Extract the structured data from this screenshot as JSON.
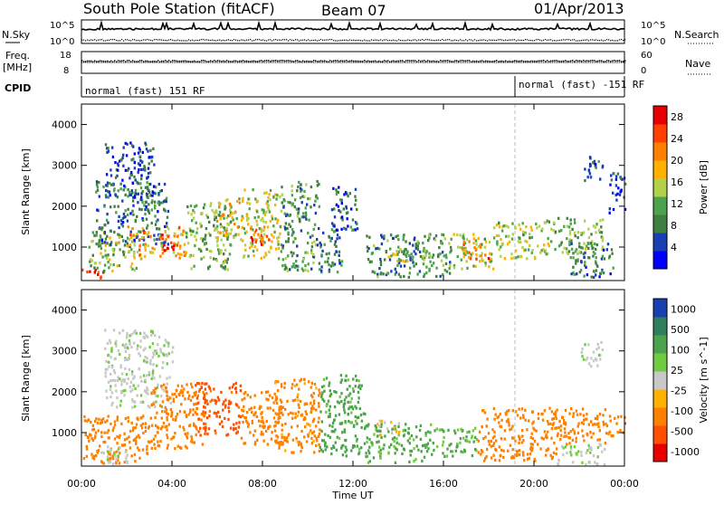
{
  "header": {
    "station": "South Pole Station (fitACF)",
    "beam": "Beam 07",
    "date": "01/Apr/2013"
  },
  "top_panels": {
    "nsky_label": "N.Sky",
    "nsky_ticks": [
      "10^5",
      "10^0"
    ],
    "nsearch_label": "N.Search",
    "nsearch_ticks": [
      "10^5",
      "10^0"
    ],
    "freq_label": "Freq.",
    "freq_unit": "[MHz]",
    "freq_ticks": [
      "18",
      "8"
    ],
    "nave_label": "Nave",
    "nave_ticks": [
      "60",
      "0"
    ],
    "cpid_label": "CPID",
    "cpid_segments": [
      {
        "text": "normal (fast) 151 RF",
        "start": "00:00"
      },
      {
        "text": "normal (fast) -151 RF",
        "start": "19:00"
      }
    ]
  },
  "x_axis": {
    "label": "Time UT",
    "ticks": [
      "00:00",
      "04:00",
      "08:00",
      "12:00",
      "16:00",
      "20:00",
      "00:00"
    ]
  },
  "y_axis": {
    "label": "Slant Range [km]",
    "ticks": [
      "1000",
      "2000",
      "3000",
      "4000"
    ]
  },
  "colors": {
    "power": [
      "#0000ff",
      "#1a3fb3",
      "#3f7f3f",
      "#4da34d",
      "#b3d24a",
      "#ffb000",
      "#ff8000",
      "#ff4000",
      "#e80000"
    ],
    "velocity": [
      "#1a3fb3",
      "#2f7f5f",
      "#4da34d",
      "#6fcc3f",
      "#c8c8c8",
      "#ffb000",
      "#ff8000",
      "#ff5000",
      "#e80000"
    ]
  },
  "chart_data": [
    {
      "type": "heatmap",
      "name": "power",
      "x_range_hours": [
        0,
        24
      ],
      "y_range_km": [
        180,
        4500
      ],
      "colorbar": {
        "label": "Power [dB]",
        "ticks": [
          "4",
          "8",
          "12",
          "16",
          "20",
          "24",
          "28"
        ],
        "range": [
          0,
          30
        ]
      },
      "echo_regions": [
        {
          "t0": 0.0,
          "t1": 1.0,
          "r0": 200,
          "r1": 450,
          "value": 26
        },
        {
          "t0": 0.3,
          "t1": 2.4,
          "r0": 400,
          "r1": 1350,
          "value": 13
        },
        {
          "t0": 0.6,
          "t1": 3.8,
          "r0": 1000,
          "r1": 2600,
          "value": 8
        },
        {
          "t0": 1.0,
          "t1": 3.2,
          "r0": 2200,
          "r1": 3550,
          "value": 5
        },
        {
          "t0": 2.0,
          "t1": 4.6,
          "r0": 700,
          "r1": 1500,
          "value": 19
        },
        {
          "t0": 3.4,
          "t1": 4.2,
          "r0": 900,
          "r1": 1300,
          "value": 27
        },
        {
          "t0": 4.6,
          "t1": 6.6,
          "r0": 400,
          "r1": 2100,
          "value": 12
        },
        {
          "t0": 5.8,
          "t1": 7.0,
          "r0": 1200,
          "r1": 2200,
          "value": 17
        },
        {
          "t0": 7.0,
          "t1": 8.8,
          "r0": 700,
          "r1": 2400,
          "value": 15
        },
        {
          "t0": 7.4,
          "t1": 8.4,
          "r0": 900,
          "r1": 1500,
          "value": 24
        },
        {
          "t0": 8.8,
          "t1": 10.5,
          "r0": 400,
          "r1": 2600,
          "value": 10
        },
        {
          "t0": 10.5,
          "t1": 11.5,
          "r0": 300,
          "r1": 1500,
          "value": 8
        },
        {
          "t0": 11.0,
          "t1": 12.2,
          "r0": 1400,
          "r1": 2500,
          "value": 6
        },
        {
          "t0": 12.5,
          "t1": 16.3,
          "r0": 250,
          "r1": 1300,
          "value": 9
        },
        {
          "t0": 13.5,
          "t1": 15.5,
          "r0": 600,
          "r1": 900,
          "value": 15
        },
        {
          "t0": 16.2,
          "t1": 18.2,
          "r0": 450,
          "r1": 1300,
          "value": 14
        },
        {
          "t0": 16.8,
          "t1": 18.0,
          "r0": 700,
          "r1": 1150,
          "value": 22
        },
        {
          "t0": 18.2,
          "t1": 20.5,
          "r0": 700,
          "r1": 1600,
          "value": 14
        },
        {
          "t0": 20.5,
          "t1": 23.0,
          "r0": 800,
          "r1": 1700,
          "value": 12
        },
        {
          "t0": 21.5,
          "t1": 23.5,
          "r0": 250,
          "r1": 1100,
          "value": 8
        },
        {
          "t0": 22.2,
          "t1": 23.0,
          "r0": 2600,
          "r1": 3300,
          "value": 6
        },
        {
          "t0": 23.3,
          "t1": 24.0,
          "r0": 1800,
          "r1": 2800,
          "value": 4
        }
      ]
    },
    {
      "type": "heatmap",
      "name": "velocity",
      "x_range_hours": [
        0,
        24
      ],
      "y_range_km": [
        180,
        4500
      ],
      "colorbar": {
        "label": "Velocity [m s^-1]",
        "ticks": [
          "1000",
          "500",
          "100",
          "25",
          "-25",
          "-100",
          "-500",
          "-1000"
        ],
        "range": [
          -1200,
          1200
        ]
      },
      "echo_regions": [
        {
          "t0": 0.0,
          "t1": 3.0,
          "r0": 200,
          "r1": 1400,
          "value": -200
        },
        {
          "t0": 0.8,
          "t1": 2.0,
          "r0": 200,
          "r1": 700,
          "value": 10
        },
        {
          "t0": 1.0,
          "t1": 4.0,
          "r0": 1600,
          "r1": 3500,
          "value": 10
        },
        {
          "t0": 3.0,
          "t1": 5.5,
          "r0": 600,
          "r1": 2200,
          "value": -350
        },
        {
          "t0": 5.0,
          "t1": 7.0,
          "r0": 900,
          "r1": 2200,
          "value": -700
        },
        {
          "t0": 7.0,
          "t1": 9.0,
          "r0": 700,
          "r1": 2000,
          "value": -300
        },
        {
          "t0": 8.5,
          "t1": 10.5,
          "r0": 500,
          "r1": 2300,
          "value": -150
        },
        {
          "t0": 10.5,
          "t1": 12.5,
          "r0": 400,
          "r1": 2400,
          "value": 150
        },
        {
          "t0": 12.5,
          "t1": 15.5,
          "r0": 250,
          "r1": 1200,
          "value": 130
        },
        {
          "t0": 13.0,
          "t1": 14.0,
          "r0": 900,
          "r1": 1300,
          "value": -30
        },
        {
          "t0": 15.5,
          "t1": 17.5,
          "r0": 400,
          "r1": 1100,
          "value": 120
        },
        {
          "t0": 17.5,
          "t1": 21.0,
          "r0": 300,
          "r1": 1600,
          "value": -250
        },
        {
          "t0": 21.0,
          "t1": 23.2,
          "r0": 700,
          "r1": 1600,
          "value": -300
        },
        {
          "t0": 21.0,
          "t1": 23.2,
          "r0": 200,
          "r1": 700,
          "value": 15
        },
        {
          "t0": 22.0,
          "t1": 23.0,
          "r0": 2600,
          "r1": 3200,
          "value": 10
        },
        {
          "t0": 23.2,
          "t1": 24.0,
          "r0": 900,
          "r1": 1400,
          "value": -400
        }
      ]
    }
  ]
}
